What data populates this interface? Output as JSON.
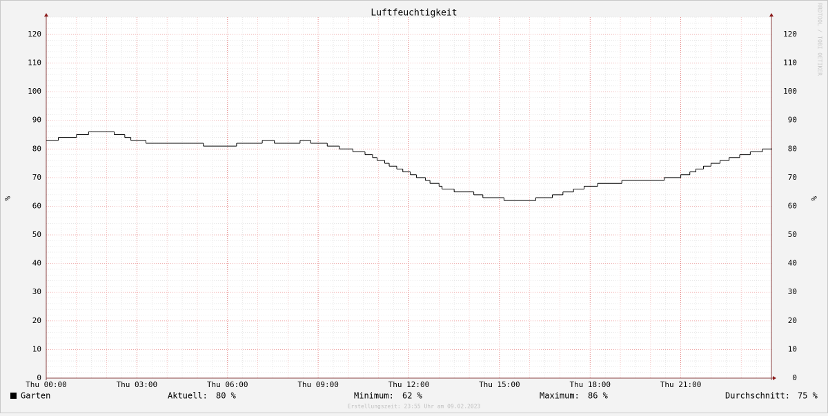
{
  "chart_data": {
    "type": "step",
    "title": "Luftfeuchtigkeit",
    "y_label": "%",
    "watermark": "RRDTOOL / TOBI OETIKER",
    "footer": "Erstellungszeit: 23:55 Uhr am 09.02.2023",
    "xlim": [
      0,
      24
    ],
    "xticks": [
      {
        "value": 0,
        "label": "Thu 00:00"
      },
      {
        "value": 3,
        "label": "Thu 03:00"
      },
      {
        "value": 6,
        "label": "Thu 06:00"
      },
      {
        "value": 9,
        "label": "Thu 09:00"
      },
      {
        "value": 12,
        "label": "Thu 12:00"
      },
      {
        "value": 15,
        "label": "Thu 15:00"
      },
      {
        "value": 18,
        "label": "Thu 18:00"
      },
      {
        "value": 21,
        "label": "Thu 21:00"
      }
    ],
    "ylim": [
      0,
      126
    ],
    "yticks": [
      0,
      10,
      20,
      30,
      40,
      50,
      60,
      70,
      80,
      90,
      100,
      110,
      120
    ],
    "grid": true,
    "series": [
      {
        "name": "Garten",
        "color": "#000000",
        "x": [
          0,
          0.4,
          1.0,
          1.4,
          2.25,
          2.6,
          2.8,
          3.3,
          5.2,
          6.3,
          7.15,
          7.55,
          8.4,
          8.75,
          9.3,
          9.7,
          10.15,
          10.55,
          10.8,
          10.95,
          11.2,
          11.35,
          11.6,
          11.8,
          12.05,
          12.25,
          12.55,
          12.7,
          13.0,
          13.1,
          13.5,
          14.15,
          14.45,
          15.15,
          16.2,
          16.75,
          17.1,
          17.45,
          17.8,
          18.25,
          19.05,
          20.45,
          21.0,
          21.3,
          21.5,
          21.75,
          22.0,
          22.3,
          22.6,
          22.95,
          23.3,
          23.7,
          24
        ],
        "values": [
          83,
          84,
          85,
          86,
          85,
          84,
          83,
          82,
          81,
          82,
          83,
          82,
          83,
          82,
          81,
          80,
          79,
          78,
          77,
          76,
          75,
          74,
          73,
          72,
          71,
          70,
          69,
          68,
          67,
          66,
          65,
          64,
          63,
          62,
          63,
          64,
          65,
          66,
          67,
          68,
          69,
          70,
          71,
          72,
          73,
          74,
          75,
          76,
          77,
          78,
          79,
          80,
          80
        ]
      }
    ],
    "stats": [
      {
        "name": "Aktuell:",
        "text": "80 %"
      },
      {
        "name": "Minimum:",
        "text": "62 %"
      },
      {
        "name": "Maximum:",
        "text": "86 %"
      },
      {
        "name": "Durchschnitt:",
        "text": "75 %"
      }
    ]
  }
}
